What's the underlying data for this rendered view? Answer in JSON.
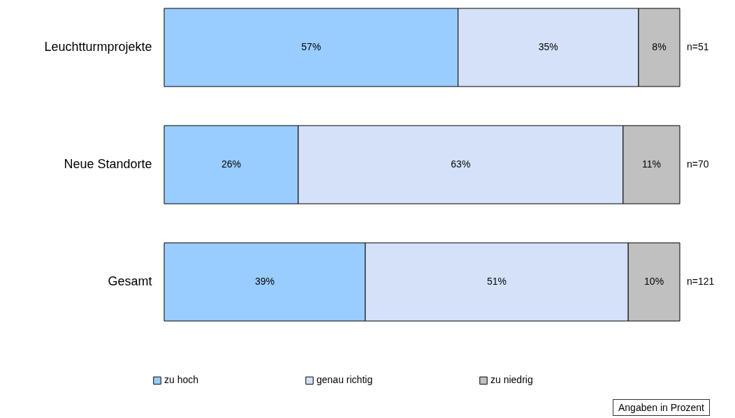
{
  "chart_data": {
    "type": "bar",
    "orientation": "horizontal",
    "stacked": true,
    "categories": [
      "Leuchtturmprojekte",
      "Neue Standorte",
      "Gesamt"
    ],
    "xlim": [
      0,
      100
    ],
    "tick_labels": "y",
    "legend": "bottom",
    "series": [
      {
        "name": "zu hoch",
        "color": "#99ccff",
        "values": [
          57,
          26,
          39
        ],
        "value_labels": [
          "57%",
          "26%",
          "39%"
        ]
      },
      {
        "name": "genau richtig",
        "color": "#d4e1f9",
        "values": [
          35,
          63,
          51
        ],
        "value_labels": [
          "35%",
          "63%",
          "51%"
        ]
      },
      {
        "name": "zu niedrig",
        "color": "#c0c0c0",
        "values": [
          8,
          11,
          10
        ],
        "value_labels": [
          "8%",
          "11%",
          "10%"
        ]
      }
    ],
    "annotations": [
      "n=51",
      "n=70",
      "n=121",
      "Angaben in Prozent"
    ]
  }
}
